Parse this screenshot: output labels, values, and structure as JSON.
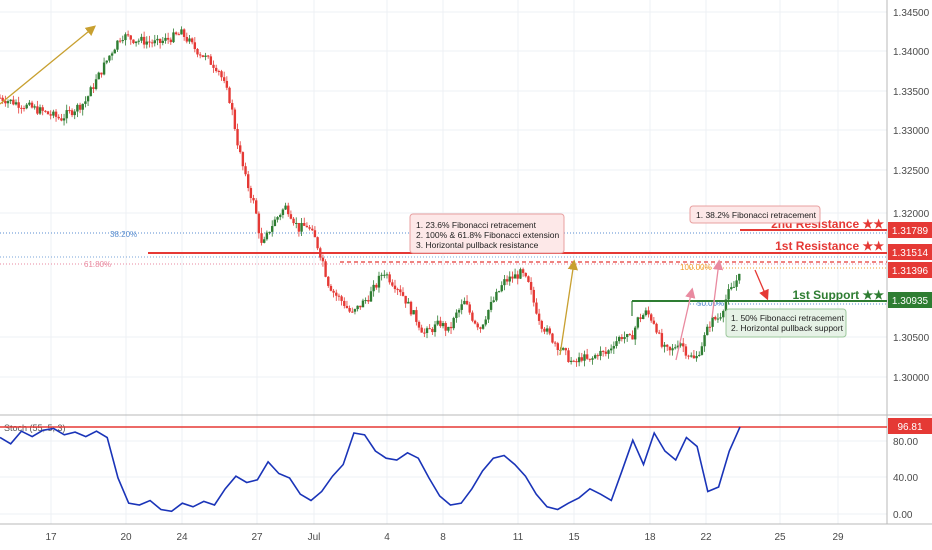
{
  "chart_data": [
    {
      "type": "candlestick",
      "title": "",
      "x_tick_labels": [
        "17",
        "20",
        "24",
        "27",
        "Jul",
        "4",
        "8",
        "11",
        "15",
        "18",
        "22",
        "25",
        "29"
      ],
      "y_tick_labels": [
        "1.34500",
        "1.34000",
        "1.33500",
        "1.33000",
        "1.32500",
        "1.32000",
        "1.30500",
        "1.30000"
      ],
      "ylim": [
        1.2965,
        1.3462
      ],
      "price_path": [
        [
          0,
          1.3345
        ],
        [
          3,
          1.3331
        ],
        [
          5,
          1.332
        ],
        [
          7,
          1.334
        ],
        [
          9,
          1.3395
        ],
        [
          10,
          1.342
        ],
        [
          11,
          1.3415
        ],
        [
          13,
          1.341
        ],
        [
          15,
          1.3422
        ],
        [
          16,
          1.3405
        ],
        [
          17,
          1.3392
        ],
        [
          18,
          1.338
        ],
        [
          19,
          1.334
        ],
        [
          19.6,
          1.329
        ],
        [
          20.2,
          1.325
        ],
        [
          21,
          1.3215
        ],
        [
          21.6,
          1.3165
        ],
        [
          22.3,
          1.319
        ],
        [
          23,
          1.3205
        ],
        [
          23.6,
          1.3215
        ],
        [
          24,
          1.3205
        ],
        [
          24.6,
          1.3188
        ],
        [
          25.3,
          1.3192
        ],
        [
          26,
          1.3175
        ],
        [
          26.6,
          1.315
        ],
        [
          27,
          1.3125
        ],
        [
          27.6,
          1.311
        ],
        [
          28.3,
          1.31
        ],
        [
          29,
          1.3085
        ],
        [
          29.6,
          1.3095
        ],
        [
          30.3,
          1.3105
        ],
        [
          31,
          1.312
        ],
        [
          31.6,
          1.3138
        ],
        [
          32.3,
          1.3125
        ],
        [
          33,
          1.3115
        ],
        [
          33.6,
          1.3098
        ],
        [
          34.3,
          1.308
        ],
        [
          35,
          1.3062
        ],
        [
          35.6,
          1.3068
        ],
        [
          36.3,
          1.3075
        ],
        [
          37,
          1.3065
        ],
        [
          37.6,
          1.3085
        ],
        [
          38.3,
          1.31
        ],
        [
          39,
          1.308
        ],
        [
          39.6,
          1.307
        ],
        [
          40.3,
          1.3092
        ],
        [
          41,
          1.311
        ],
        [
          41.6,
          1.3125
        ],
        [
          42.3,
          1.313
        ],
        [
          43,
          1.3135
        ],
        [
          43.6,
          1.312
        ],
        [
          44,
          1.31
        ],
        [
          44.6,
          1.3075
        ],
        [
          45.3,
          1.306
        ],
        [
          46,
          1.3048
        ],
        [
          46.6,
          1.3038
        ],
        [
          47.3,
          1.3025
        ],
        [
          48,
          1.3035
        ],
        [
          48.6,
          1.3028
        ],
        [
          49.3,
          1.304
        ],
        [
          50,
          1.3038
        ],
        [
          50.6,
          1.3052
        ],
        [
          51.3,
          1.306
        ],
        [
          52,
          1.3055
        ],
        [
          52.6,
          1.308
        ],
        [
          53.3,
          1.3088
        ],
        [
          54,
          1.3075
        ],
        [
          54.6,
          1.3045
        ],
        [
          55.3,
          1.304
        ],
        [
          56,
          1.3055
        ],
        [
          56.6,
          1.304
        ],
        [
          57.3,
          1.303
        ],
        [
          58,
          1.3055
        ],
        [
          58.6,
          1.3078
        ],
        [
          59.3,
          1.3082
        ],
        [
          60,
          1.311
        ],
        [
          60.6,
          1.312
        ],
        [
          61,
          1.3142
        ]
      ],
      "levels": [
        {
          "label": "2nd Resistance ★★",
          "value": 1.31789
        },
        {
          "label": "1st Resistance ★★",
          "value": 1.31514
        },
        {
          "label": "1st Support ★★",
          "value": 1.30935
        }
      ],
      "price_labels": [
        "1.31789",
        "1.31514",
        "1.31396",
        "1.30935"
      ],
      "fib_labels": [
        "38.20%",
        "61.80%",
        "100.00%",
        "50.00%"
      ],
      "colors": {
        "resistance": "#e53935",
        "support": "#2e7d32",
        "price_line": "#f0a030",
        "up": "#2e7d32",
        "down": "#e53935"
      },
      "annotations": [
        {
          "lines": [
            "1.  23.6% Fibonacci retracement",
            "2. 100% & 61.8% Fibonacci extension",
            "3. Horizontal pullback resistance"
          ]
        },
        {
          "lines": [
            "1. 38.2% Fibonacci retracement"
          ]
        },
        {
          "lines": [
            "1. 50% Fibonacci retracement",
            "2. Horizontal pullback support"
          ]
        }
      ]
    },
    {
      "type": "line",
      "title": "Stoch (55, 5, 3)",
      "y_tick_labels": [
        "80.00",
        "40.00",
        "0.00"
      ],
      "ylim": [
        -5,
        105
      ],
      "current_label": "96.81",
      "values": [
        [
          0,
          85
        ],
        [
          1,
          78
        ],
        [
          2,
          92
        ],
        [
          3,
          86
        ],
        [
          4,
          93
        ],
        [
          5,
          95
        ],
        [
          6,
          88
        ],
        [
          7,
          91
        ],
        [
          8,
          86
        ],
        [
          9,
          92
        ],
        [
          10,
          85
        ],
        [
          11,
          40
        ],
        [
          12,
          12
        ],
        [
          13,
          10
        ],
        [
          14,
          15
        ],
        [
          15,
          5
        ],
        [
          16,
          3
        ],
        [
          17,
          12
        ],
        [
          18,
          8
        ],
        [
          19,
          14
        ],
        [
          20,
          10
        ],
        [
          21,
          28
        ],
        [
          22,
          42
        ],
        [
          23,
          35
        ],
        [
          24,
          38
        ],
        [
          25,
          58
        ],
        [
          26,
          45
        ],
        [
          27,
          40
        ],
        [
          28,
          22
        ],
        [
          29,
          15
        ],
        [
          30,
          25
        ],
        [
          31,
          42
        ],
        [
          32,
          55
        ],
        [
          33,
          90
        ],
        [
          34,
          88
        ],
        [
          35,
          70
        ],
        [
          36,
          62
        ],
        [
          37,
          60
        ],
        [
          38,
          68
        ],
        [
          39,
          62
        ],
        [
          40,
          40
        ],
        [
          41,
          20
        ],
        [
          42,
          10
        ],
        [
          43,
          12
        ],
        [
          44,
          28
        ],
        [
          45,
          48
        ],
        [
          46,
          62
        ],
        [
          47,
          65
        ],
        [
          48,
          55
        ],
        [
          49,
          42
        ],
        [
          50,
          22
        ],
        [
          51,
          8
        ],
        [
          52,
          5
        ],
        [
          53,
          12
        ],
        [
          54,
          18
        ],
        [
          55,
          28
        ],
        [
          56,
          22
        ],
        [
          57,
          15
        ],
        [
          58,
          48
        ],
        [
          59,
          82
        ],
        [
          60,
          55
        ],
        [
          61,
          90
        ],
        [
          62,
          70
        ],
        [
          63,
          60
        ],
        [
          64,
          85
        ],
        [
          65,
          75
        ],
        [
          66,
          25
        ],
        [
          67,
          30
        ],
        [
          68,
          70
        ],
        [
          69,
          96.8
        ]
      ]
    }
  ]
}
